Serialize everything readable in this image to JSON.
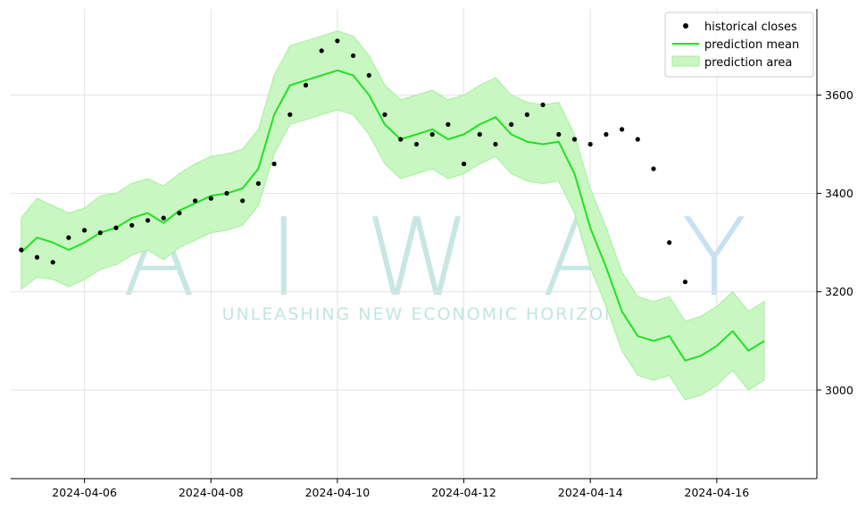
{
  "watermark": {
    "letters": [
      "A",
      "I",
      "W",
      "A",
      "Y"
    ],
    "tagline": "UNLEASHING NEW ECONOMIC HORIZONS",
    "colors": [
      "#8fd0c6",
      "#8fd0c6",
      "#8fd0c6",
      "#8fd0c6",
      "#8ec4e8"
    ]
  },
  "chart_data": {
    "type": "line",
    "title": "",
    "xlabel": "",
    "ylabel": "",
    "xlim": [
      "2024-04-04T20:00",
      "2024-04-17T14:00"
    ],
    "ylim": [
      2820,
      3775
    ],
    "x_ticks": [
      "2024-04-06",
      "2024-04-08",
      "2024-04-10",
      "2024-04-12",
      "2024-04-14",
      "2024-04-16"
    ],
    "y_ticks": [
      3000,
      3200,
      3400,
      3600
    ],
    "y_axis_side": "right",
    "grid": true,
    "legend_position": "top-right",
    "colors": {
      "historical": "#000000",
      "mean": "#22e022",
      "area_fill": "#c8f7c2",
      "area_edge": "#a5ee9c"
    },
    "legend": [
      {
        "label": "historical closes",
        "kind": "marker"
      },
      {
        "label": "prediction mean",
        "kind": "line"
      },
      {
        "label": "prediction area",
        "kind": "patch"
      }
    ],
    "series": [
      {
        "name": "historical closes",
        "kind": "scatter",
        "x": [
          "2024-04-05T00:00",
          "2024-04-05T06:00",
          "2024-04-05T12:00",
          "2024-04-05T18:00",
          "2024-04-06T00:00",
          "2024-04-06T06:00",
          "2024-04-06T12:00",
          "2024-04-06T18:00",
          "2024-04-07T00:00",
          "2024-04-07T06:00",
          "2024-04-07T12:00",
          "2024-04-07T18:00",
          "2024-04-08T00:00",
          "2024-04-08T06:00",
          "2024-04-08T12:00",
          "2024-04-08T18:00",
          "2024-04-09T00:00",
          "2024-04-09T06:00",
          "2024-04-09T12:00",
          "2024-04-09T18:00",
          "2024-04-10T00:00",
          "2024-04-10T06:00",
          "2024-04-10T12:00",
          "2024-04-10T18:00",
          "2024-04-11T00:00",
          "2024-04-11T06:00",
          "2024-04-11T12:00",
          "2024-04-11T18:00",
          "2024-04-12T00:00",
          "2024-04-12T06:00",
          "2024-04-12T12:00",
          "2024-04-12T18:00",
          "2024-04-13T00:00",
          "2024-04-13T06:00",
          "2024-04-13T12:00",
          "2024-04-13T18:00",
          "2024-04-14T00:00",
          "2024-04-14T06:00",
          "2024-04-14T12:00",
          "2024-04-14T18:00",
          "2024-04-15T00:00",
          "2024-04-15T06:00",
          "2024-04-15T12:00"
        ],
        "values": [
          3285,
          3270,
          3260,
          3310,
          3325,
          3320,
          3330,
          3335,
          3345,
          3350,
          3360,
          3385,
          3390,
          3400,
          3385,
          3420,
          3460,
          3560,
          3620,
          3690,
          3710,
          3680,
          3640,
          3560,
          3510,
          3500,
          3520,
          3540,
          3460,
          3520,
          3500,
          3540,
          3560,
          3580,
          3520,
          3510,
          3500,
          3520,
          3530,
          3510,
          3450,
          3300,
          3220
        ]
      },
      {
        "name": "prediction mean",
        "kind": "line",
        "x": [
          "2024-04-05T00:00",
          "2024-04-05T06:00",
          "2024-04-05T12:00",
          "2024-04-05T18:00",
          "2024-04-06T00:00",
          "2024-04-06T06:00",
          "2024-04-06T12:00",
          "2024-04-06T18:00",
          "2024-04-07T00:00",
          "2024-04-07T06:00",
          "2024-04-07T12:00",
          "2024-04-07T18:00",
          "2024-04-08T00:00",
          "2024-04-08T06:00",
          "2024-04-08T12:00",
          "2024-04-08T18:00",
          "2024-04-09T00:00",
          "2024-04-09T06:00",
          "2024-04-09T12:00",
          "2024-04-09T18:00",
          "2024-04-10T00:00",
          "2024-04-10T06:00",
          "2024-04-10T12:00",
          "2024-04-10T18:00",
          "2024-04-11T00:00",
          "2024-04-11T06:00",
          "2024-04-11T12:00",
          "2024-04-11T18:00",
          "2024-04-12T00:00",
          "2024-04-12T06:00",
          "2024-04-12T12:00",
          "2024-04-12T18:00",
          "2024-04-13T00:00",
          "2024-04-13T06:00",
          "2024-04-13T12:00",
          "2024-04-13T18:00",
          "2024-04-14T00:00",
          "2024-04-14T06:00",
          "2024-04-14T12:00",
          "2024-04-14T18:00",
          "2024-04-15T00:00",
          "2024-04-15T06:00",
          "2024-04-15T12:00",
          "2024-04-15T18:00",
          "2024-04-16T00:00",
          "2024-04-16T06:00",
          "2024-04-16T12:00",
          "2024-04-16T18:00"
        ],
        "values": [
          3280,
          3310,
          3300,
          3285,
          3300,
          3320,
          3330,
          3350,
          3360,
          3340,
          3365,
          3380,
          3395,
          3400,
          3410,
          3450,
          3560,
          3620,
          3630,
          3640,
          3650,
          3640,
          3600,
          3540,
          3510,
          3520,
          3530,
          3510,
          3520,
          3540,
          3555,
          3520,
          3505,
          3500,
          3505,
          3440,
          3330,
          3250,
          3160,
          3110,
          3100,
          3110,
          3060,
          3070,
          3090,
          3120,
          3080,
          3100
        ]
      },
      {
        "name": "prediction area",
        "kind": "band",
        "x": [
          "2024-04-05T00:00",
          "2024-04-05T06:00",
          "2024-04-05T12:00",
          "2024-04-05T18:00",
          "2024-04-06T00:00",
          "2024-04-06T06:00",
          "2024-04-06T12:00",
          "2024-04-06T18:00",
          "2024-04-07T00:00",
          "2024-04-07T06:00",
          "2024-04-07T12:00",
          "2024-04-07T18:00",
          "2024-04-08T00:00",
          "2024-04-08T06:00",
          "2024-04-08T12:00",
          "2024-04-08T18:00",
          "2024-04-09T00:00",
          "2024-04-09T06:00",
          "2024-04-09T12:00",
          "2024-04-09T18:00",
          "2024-04-10T00:00",
          "2024-04-10T06:00",
          "2024-04-10T12:00",
          "2024-04-10T18:00",
          "2024-04-11T00:00",
          "2024-04-11T06:00",
          "2024-04-11T12:00",
          "2024-04-11T18:00",
          "2024-04-12T00:00",
          "2024-04-12T06:00",
          "2024-04-12T12:00",
          "2024-04-12T18:00",
          "2024-04-13T00:00",
          "2024-04-13T06:00",
          "2024-04-13T12:00",
          "2024-04-13T18:00",
          "2024-04-14T00:00",
          "2024-04-14T06:00",
          "2024-04-14T12:00",
          "2024-04-14T18:00",
          "2024-04-15T00:00",
          "2024-04-15T06:00",
          "2024-04-15T12:00",
          "2024-04-15T18:00",
          "2024-04-16T00:00",
          "2024-04-16T06:00",
          "2024-04-16T12:00",
          "2024-04-16T18:00"
        ],
        "upper": [
          3350,
          3390,
          3375,
          3360,
          3370,
          3395,
          3400,
          3420,
          3430,
          3415,
          3440,
          3460,
          3475,
          3480,
          3490,
          3530,
          3640,
          3700,
          3710,
          3720,
          3730,
          3720,
          3680,
          3620,
          3590,
          3600,
          3610,
          3590,
          3600,
          3620,
          3635,
          3600,
          3585,
          3580,
          3585,
          3520,
          3410,
          3330,
          3240,
          3190,
          3180,
          3190,
          3140,
          3150,
          3170,
          3200,
          3160,
          3180
        ],
        "lower": [
          3205,
          3230,
          3225,
          3210,
          3225,
          3245,
          3255,
          3275,
          3285,
          3265,
          3290,
          3305,
          3320,
          3325,
          3335,
          3375,
          3480,
          3540,
          3550,
          3560,
          3570,
          3560,
          3520,
          3460,
          3430,
          3440,
          3450,
          3430,
          3440,
          3460,
          3475,
          3440,
          3425,
          3420,
          3425,
          3360,
          3250,
          3170,
          3080,
          3030,
          3020,
          3030,
          2980,
          2990,
          3010,
          3040,
          3000,
          3020
        ]
      }
    ]
  }
}
